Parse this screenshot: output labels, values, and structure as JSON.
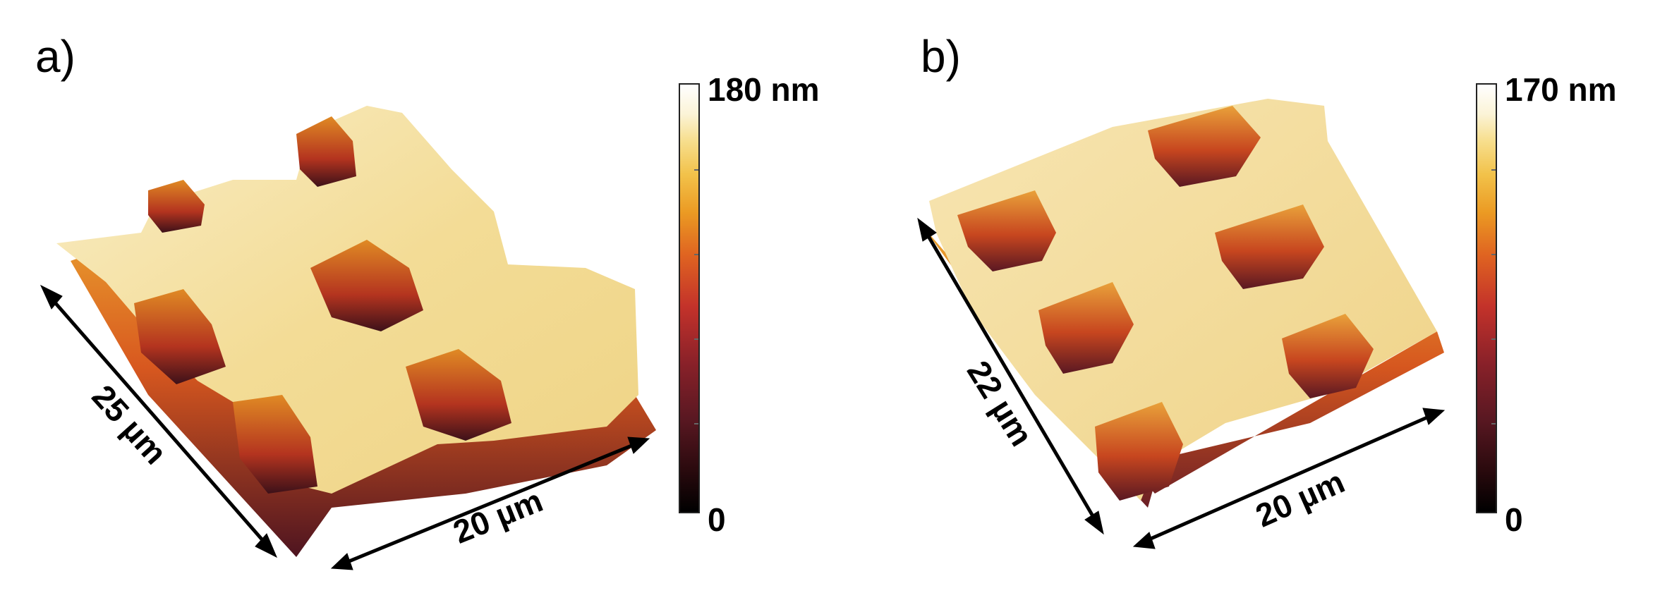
{
  "figure": {
    "panels": [
      {
        "id": "a",
        "letter": "a)",
        "width_label": "25 µm",
        "length_label": "20 µm",
        "colorbar": {
          "max_label": "180 nm",
          "min_label": "0"
        }
      },
      {
        "id": "b",
        "letter": "b)",
        "width_label": "22 µm",
        "length_label": "20 µm",
        "colorbar": {
          "max_label": "170 nm",
          "min_label": "0"
        }
      }
    ],
    "colors": {
      "surface_top": "#f2d98f",
      "surface_highlight": "#fbf2d4",
      "pit_wall": "#e0701e",
      "pit_bottom": "#5a1822",
      "background": "#ffffff"
    }
  }
}
